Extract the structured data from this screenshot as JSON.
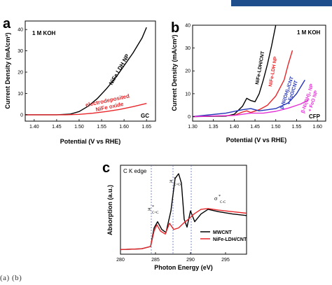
{
  "header_bar_color": "#1f4e8c",
  "caption_fragment": "(a) (b)",
  "panels": {
    "a": {
      "label": "a",
      "electrolyte": "1 M KOH",
      "substrate": "GC"
    },
    "b": {
      "label": "b",
      "electrolyte": "1 M KOH",
      "substrate": "CFP"
    },
    "c": {
      "label": "c",
      "edge_label": "C K edge",
      "peak_labels": [
        "π*C=C",
        "π*C=O",
        "σ*C-C"
      ]
    }
  },
  "chart_data": [
    {
      "id": "a",
      "type": "line",
      "xlabel": "Potential (V vs RHE)",
      "ylabel": "Current Density (mA/cm²)",
      "xlim": [
        1.38,
        1.67
      ],
      "ylim": [
        -3,
        44
      ],
      "xticks": [
        "1.40",
        "1.45",
        "1.50",
        "1.55",
        "1.60",
        "1.65"
      ],
      "yticks": [
        "0",
        "10",
        "20",
        "30",
        "40"
      ],
      "series": [
        {
          "name": "NiFe LDH NP",
          "color": "#000000",
          "x": [
            1.38,
            1.45,
            1.48,
            1.5,
            1.52,
            1.54,
            1.56,
            1.58,
            1.6,
            1.62,
            1.64,
            1.65
          ],
          "y": [
            0,
            0,
            0.3,
            1.5,
            4,
            7.5,
            12,
            17,
            23,
            29,
            36,
            41
          ]
        },
        {
          "name": "electrodeposited NiFe oxide",
          "color": "#e8262a",
          "x": [
            1.38,
            1.47,
            1.5,
            1.53,
            1.56,
            1.59,
            1.62,
            1.65
          ],
          "y": [
            0,
            0,
            0.2,
            0.7,
            1.5,
            2.5,
            3.8,
            5.3
          ]
        }
      ]
    },
    {
      "id": "b",
      "type": "line",
      "xlabel": "Potential (V vs RHE)",
      "ylabel": "Current Density (mA/cm²)",
      "xlim": [
        1.3,
        1.62
      ],
      "ylim": [
        -2,
        40
      ],
      "xticks": [
        "1.30",
        "1.35",
        "1.40",
        "1.45",
        "1.50",
        "1.55",
        "1.60"
      ],
      "yticks": [
        "0",
        "10",
        "20",
        "30",
        "40"
      ],
      "series": [
        {
          "name": "NiFe-LDH/CNT",
          "color": "#000000",
          "x": [
            1.3,
            1.38,
            1.4,
            1.42,
            1.43,
            1.44,
            1.45,
            1.46,
            1.47,
            1.48,
            1.49,
            1.5
          ],
          "y": [
            0,
            0.2,
            1,
            4.5,
            8,
            7,
            6.5,
            10,
            16,
            23,
            31,
            40
          ]
        },
        {
          "name": "NiFe-LDH NP",
          "color": "#e8262a",
          "x": [
            1.3,
            1.4,
            1.42,
            1.43,
            1.44,
            1.46,
            1.48,
            1.5,
            1.52,
            1.53,
            1.54
          ],
          "y": [
            0,
            0.5,
            2,
            2.5,
            1.8,
            3,
            5,
            9,
            16,
            23,
            29
          ]
        },
        {
          "name": "β-Ni(OH)₂/CNT + FeO",
          "color": "#2333b8",
          "x": [
            1.3,
            1.38,
            1.42,
            1.44,
            1.46,
            1.5,
            1.53,
            1.55,
            1.57
          ],
          "y": [
            0,
            1.5,
            3,
            3.5,
            2.5,
            3.5,
            6,
            10,
            16
          ]
        },
        {
          "name": "β-Ni(OH)₂ NP + FeO NP",
          "color": "#e331d6",
          "x": [
            1.3,
            1.4,
            1.44,
            1.47,
            1.5,
            1.53,
            1.56,
            1.58
          ],
          "y": [
            0,
            0.5,
            1.5,
            1.5,
            2.3,
            3.7,
            5.5,
            7.5
          ]
        }
      ]
    },
    {
      "id": "c",
      "type": "line",
      "xlabel": "Photon Energy (eV)",
      "ylabel": "Absorption (a.u.)",
      "xlim": [
        280,
        298
      ],
      "ylim": [
        0,
        1.15
      ],
      "xticks": [
        "280",
        "285",
        "290",
        "295"
      ],
      "reference_lines_ev": [
        284.4,
        287.5,
        290.1
      ],
      "series": [
        {
          "name": "MWCNT",
          "color": "#000000",
          "x": [
            280,
            283,
            284.3,
            284.8,
            285.3,
            285.9,
            286.5,
            287.2,
            287.8,
            288.3,
            288.7,
            289.1,
            289.5,
            290.0,
            290.6,
            291.5,
            292.5,
            294,
            296,
            298
          ],
          "y": [
            0.06,
            0.07,
            0.1,
            0.34,
            0.42,
            0.32,
            0.28,
            0.56,
            0.98,
            1.04,
            0.92,
            0.45,
            0.35,
            0.56,
            0.42,
            0.52,
            0.58,
            0.55,
            0.52,
            0.5
          ]
        },
        {
          "name": "NiFe-LDH/CNT",
          "color": "#e8262a",
          "x": [
            280,
            283,
            284.3,
            284.8,
            285.2,
            285.7,
            286.4,
            287.0,
            287.6,
            288.3,
            289.0,
            289.8,
            290.5,
            291.5,
            292.5,
            294,
            296,
            298
          ],
          "y": [
            0.06,
            0.07,
            0.1,
            0.3,
            0.38,
            0.3,
            0.26,
            0.4,
            0.32,
            0.34,
            0.4,
            0.46,
            0.52,
            0.58,
            0.59,
            0.57,
            0.55,
            0.53
          ]
        }
      ]
    }
  ]
}
